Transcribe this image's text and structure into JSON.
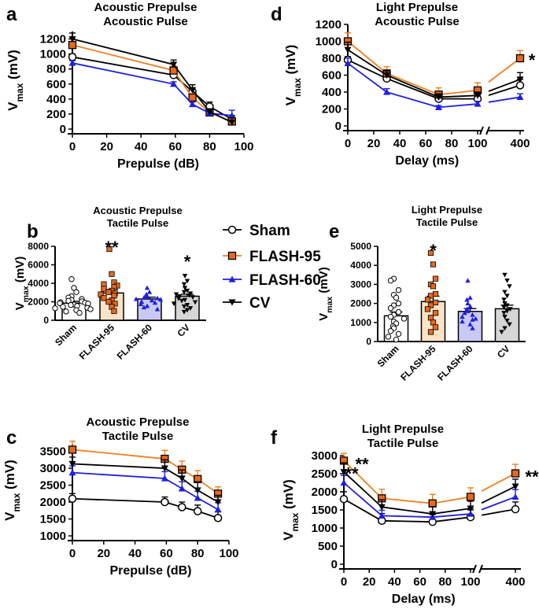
{
  "colors": {
    "sham": "#000000",
    "flash95": "#F07F20",
    "flash60": "#1F1FE0",
    "cv": "#000000",
    "flash95_marker": "#E8691C",
    "flash95_bar": "#FBE3C7",
    "flash60_bar": "#C9C9F5",
    "cv_bar": "#D6D6D6"
  },
  "legend": {
    "items": [
      "Sham",
      "FLASH-95",
      "FLASH-60",
      "CV"
    ]
  },
  "chart_data": [
    {
      "panel": "a",
      "type": "line",
      "title": [
        "Acoustic Prepulse",
        "Acoustic Pulse"
      ],
      "xlabel": "Prepulse (dB)",
      "ylabel": "V",
      "ylabel_sub": "max",
      "ylabel_unit": " (mV)",
      "xlim": [
        0,
        100
      ],
      "ylim": [
        0,
        1300
      ],
      "xticks": [
        0,
        20,
        40,
        60,
        80,
        100
      ],
      "yticks": [
        0,
        200,
        400,
        600,
        800,
        1000,
        1200
      ],
      "x": [
        0,
        59,
        70,
        80,
        93
      ],
      "series": [
        {
          "name": "Sham",
          "values": [
            960,
            720,
            500,
            300,
            130
          ],
          "err": [
            40,
            50,
            50,
            60,
            50
          ]
        },
        {
          "name": "FLASH-95",
          "values": [
            1120,
            780,
            420,
            220,
            100
          ],
          "err": [
            90,
            60,
            50,
            40,
            60
          ]
        },
        {
          "name": "FLASH-60",
          "values": [
            880,
            600,
            330,
            210,
            180
          ],
          "err": [
            30,
            30,
            30,
            30,
            70
          ]
        },
        {
          "name": "CV",
          "values": [
            1200,
            860,
            520,
            230,
            90
          ],
          "err": [
            80,
            60,
            70,
            40,
            60
          ]
        }
      ],
      "annotations": []
    },
    {
      "panel": "d",
      "type": "line",
      "title": [
        "Light Prepulse",
        "Acoustic Pulse"
      ],
      "xlabel": "Delay (ms)",
      "ylabel": "V",
      "ylabel_sub": "max",
      "ylabel_unit": " (mV)",
      "ylim": [
        0,
        1200
      ],
      "xticks": [
        0,
        20,
        40,
        60,
        80,
        100
      ],
      "xticks_right": [
        400
      ],
      "yticks": [
        0,
        200,
        400,
        600,
        800,
        1000,
        1200
      ],
      "x": [
        0,
        30,
        70,
        100
      ],
      "x_right": [
        400
      ],
      "series": [
        {
          "name": "Sham",
          "values": [
            780,
            560,
            320,
            320
          ],
          "right_value": 480,
          "err": [
            40,
            40,
            30,
            40
          ],
          "right_err": 70
        },
        {
          "name": "FLASH-95",
          "values": [
            1000,
            620,
            370,
            420
          ],
          "right_value": 800,
          "err": [
            100,
            80,
            80,
            90
          ],
          "right_err": 90
        },
        {
          "name": "FLASH-60",
          "values": [
            740,
            400,
            220,
            260
          ],
          "right_value": 340,
          "err": [
            60,
            40,
            20,
            30
          ],
          "right_err": 40
        },
        {
          "name": "CV",
          "values": [
            900,
            600,
            340,
            360
          ],
          "right_value": 550,
          "err": [
            90,
            50,
            40,
            40
          ],
          "right_err": 80
        }
      ],
      "annotations": [
        {
          "text": "*",
          "near": "FLASH-95 at 400"
        }
      ]
    },
    {
      "panel": "b",
      "type": "bar",
      "title": [
        "Acoustic Prepulse",
        "Tactile Pulse"
      ],
      "ylabel": "V",
      "ylabel_sub": "max",
      "ylabel_unit": " (mV)",
      "ylim": [
        0,
        8000
      ],
      "yticks": [
        0,
        2000,
        4000,
        6000,
        8000
      ],
      "categories": [
        "Sham",
        "FLASH-95",
        "FLASH-60",
        "CV"
      ],
      "values": [
        1850,
        2950,
        2300,
        2600
      ],
      "err": [
        200,
        380,
        200,
        220
      ],
      "points": [
        [
          4450,
          3500,
          3050,
          2600,
          2450,
          2300,
          2200,
          2100,
          2050,
          1950,
          1900,
          1850,
          1800,
          1700,
          1650,
          1550,
          1450,
          1350,
          1300,
          1200,
          1100,
          950,
          800
        ],
        [
          7700,
          5000,
          4100,
          3900,
          3750,
          3600,
          3400,
          3200,
          3050,
          2900,
          2800,
          2650,
          2400,
          2150,
          2000,
          1800,
          1450,
          1000
        ],
        [
          3500,
          3050,
          2800,
          2600,
          2450,
          2400,
          2300,
          2250,
          2150,
          2000,
          1900,
          1750,
          1550,
          1400,
          1200
        ],
        [
          4800,
          4250,
          3900,
          3500,
          3200,
          3050,
          2900,
          2800,
          2700,
          2600,
          2500,
          2350,
          2200,
          2100,
          1950,
          1800,
          1650,
          1500,
          1300,
          1100,
          900
        ]
      ],
      "annotations": [
        {
          "text": "**",
          "category": "FLASH-95"
        },
        {
          "text": "*",
          "category": "CV"
        }
      ]
    },
    {
      "panel": "e",
      "type": "bar",
      "title": [
        "Light Prepulse",
        "Tactile Pulse"
      ],
      "ylabel": "V",
      "ylabel_sub": "max",
      "ylabel_unit": " (mV)",
      "ylim": [
        0,
        5000
      ],
      "yticks": [
        0,
        1000,
        2000,
        3000,
        4000,
        5000
      ],
      "categories": [
        "Sham",
        "FLASH-95",
        "FLASH-60",
        "CV"
      ],
      "values": [
        1350,
        2100,
        1580,
        1720
      ],
      "err": [
        200,
        280,
        150,
        190
      ],
      "points": [
        [
          3300,
          3200,
          2700,
          2450,
          2300,
          2000,
          1900,
          1750,
          1550,
          1400,
          1300,
          1200,
          1050,
          950,
          800,
          700,
          550,
          400,
          250,
          100
        ],
        [
          4650,
          4050,
          3300,
          3000,
          2900,
          2500,
          2400,
          2200,
          2050,
          1900,
          1700,
          1500,
          1250,
          1000,
          750,
          500
        ],
        [
          3200,
          2300,
          2200,
          2000,
          1850,
          1700,
          1600,
          1500,
          1400,
          1300,
          1200,
          1150,
          1050,
          900,
          700
        ],
        [
          3500,
          3200,
          2900,
          2600,
          2400,
          2200,
          2000,
          1900,
          1800,
          1700,
          1600,
          1500,
          1300,
          1100,
          900,
          700,
          500
        ]
      ],
      "annotations": [
        {
          "text": "*",
          "category": "FLASH-95"
        }
      ]
    },
    {
      "panel": "c",
      "type": "line",
      "title": [
        "Acoustic Prepulse",
        "Tactile Pulse"
      ],
      "xlabel": "Prepulse (dB)",
      "ylabel": "V",
      "ylabel_sub": "max",
      "ylabel_unit": " (mV)",
      "xlim": [
        0,
        100
      ],
      "ylim": [
        1000,
        3700
      ],
      "xticks": [
        0,
        20,
        40,
        60,
        80,
        100
      ],
      "yticks": [
        1000,
        1500,
        2000,
        2500,
        3000,
        3500
      ],
      "x": [
        0,
        59,
        70,
        80,
        93
      ],
      "series": [
        {
          "name": "Sham",
          "values": [
            2100,
            2000,
            1850,
            1730,
            1530
          ],
          "err": [
            150,
            150,
            150,
            180,
            180
          ]
        },
        {
          "name": "FLASH-95",
          "values": [
            3550,
            3280,
            2960,
            2680,
            2250
          ],
          "err": [
            250,
            250,
            250,
            250,
            200
          ]
        },
        {
          "name": "FLASH-60",
          "values": [
            2870,
            2700,
            2400,
            2120,
            1780
          ],
          "err": [
            200,
            200,
            200,
            200,
            200
          ]
        },
        {
          "name": "CV",
          "values": [
            3130,
            3000,
            2700,
            2350,
            2000
          ],
          "err": [
            200,
            250,
            250,
            250,
            200
          ]
        }
      ],
      "annotations": []
    },
    {
      "panel": "f",
      "type": "line",
      "title": [
        "Light Prepulse",
        "Tactile Pulse"
      ],
      "xlabel": "Delay (ms)",
      "ylabel": "V",
      "ylabel_sub": "max",
      "ylabel_unit": " (mV)",
      "ylim": [
        0,
        3000
      ],
      "xticks": [
        0,
        20,
        40,
        60,
        80,
        100
      ],
      "xticks_right": [
        400
      ],
      "yticks": [
        0,
        500,
        1000,
        1500,
        2000,
        2500,
        3000
      ],
      "x": [
        0,
        30,
        70,
        100
      ],
      "x_right": [
        400
      ],
      "series": [
        {
          "name": "Sham",
          "values": [
            1800,
            1200,
            1170,
            1300
          ],
          "right_value": 1520,
          "err": [
            200,
            200,
            200,
            200
          ],
          "right_err": 200
        },
        {
          "name": "FLASH-95",
          "values": [
            2860,
            1820,
            1680,
            1860
          ],
          "right_value": 2510,
          "err": [
            200,
            250,
            250,
            250
          ],
          "right_err": 250
        },
        {
          "name": "FLASH-60",
          "values": [
            2250,
            1340,
            1300,
            1390
          ],
          "right_value": 1860,
          "err": [
            200,
            150,
            150,
            150
          ],
          "right_err": 200
        },
        {
          "name": "CV",
          "values": [
            2550,
            1580,
            1390,
            1540
          ],
          "right_value": 2150,
          "err": [
            250,
            200,
            200,
            200
          ],
          "right_err": 200
        }
      ],
      "annotations": [
        {
          "text": "**",
          "near": "FLASH-95 at 0"
        },
        {
          "text": "**",
          "near": "CV at 0"
        },
        {
          "text": "**",
          "near": "FLASH-95 at 400"
        }
      ]
    }
  ]
}
